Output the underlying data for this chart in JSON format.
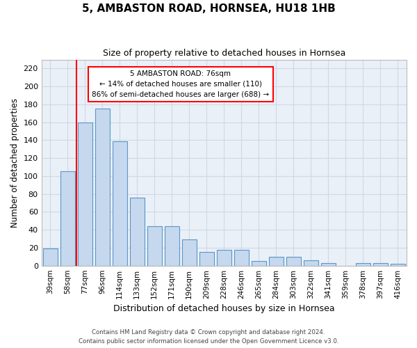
{
  "title1": "5, AMBASTON ROAD, HORNSEA, HU18 1HB",
  "title2": "Size of property relative to detached houses in Hornsea",
  "xlabel": "Distribution of detached houses by size in Hornsea",
  "ylabel": "Number of detached properties",
  "categories": [
    "39sqm",
    "58sqm",
    "77sqm",
    "96sqm",
    "114sqm",
    "133sqm",
    "152sqm",
    "171sqm",
    "190sqm",
    "209sqm",
    "228sqm",
    "246sqm",
    "265sqm",
    "284sqm",
    "303sqm",
    "322sqm",
    "341sqm",
    "359sqm",
    "378sqm",
    "397sqm",
    "416sqm"
  ],
  "values": [
    19,
    105,
    160,
    175,
    139,
    76,
    44,
    44,
    29,
    15,
    18,
    18,
    5,
    10,
    10,
    6,
    3,
    0,
    3,
    3,
    2
  ],
  "bar_color": "#c5d8ed",
  "bar_edge_color": "#5a96c8",
  "annotation_text_line1": "5 AMBASTON ROAD: 76sqm",
  "annotation_text_line2": "← 14% of detached houses are smaller (110)",
  "annotation_text_line3": "86% of semi-detached houses are larger (688) →",
  "vline_position": 1.5,
  "ylim": [
    0,
    230
  ],
  "yticks": [
    0,
    20,
    40,
    60,
    80,
    100,
    120,
    140,
    160,
    180,
    200,
    220
  ],
  "grid_color": "#d0d8e4",
  "plot_bg_color": "#eaf0f8",
  "footer1": "Contains HM Land Registry data © Crown copyright and database right 2024.",
  "footer2": "Contains public sector information licensed under the Open Government Licence v3.0."
}
